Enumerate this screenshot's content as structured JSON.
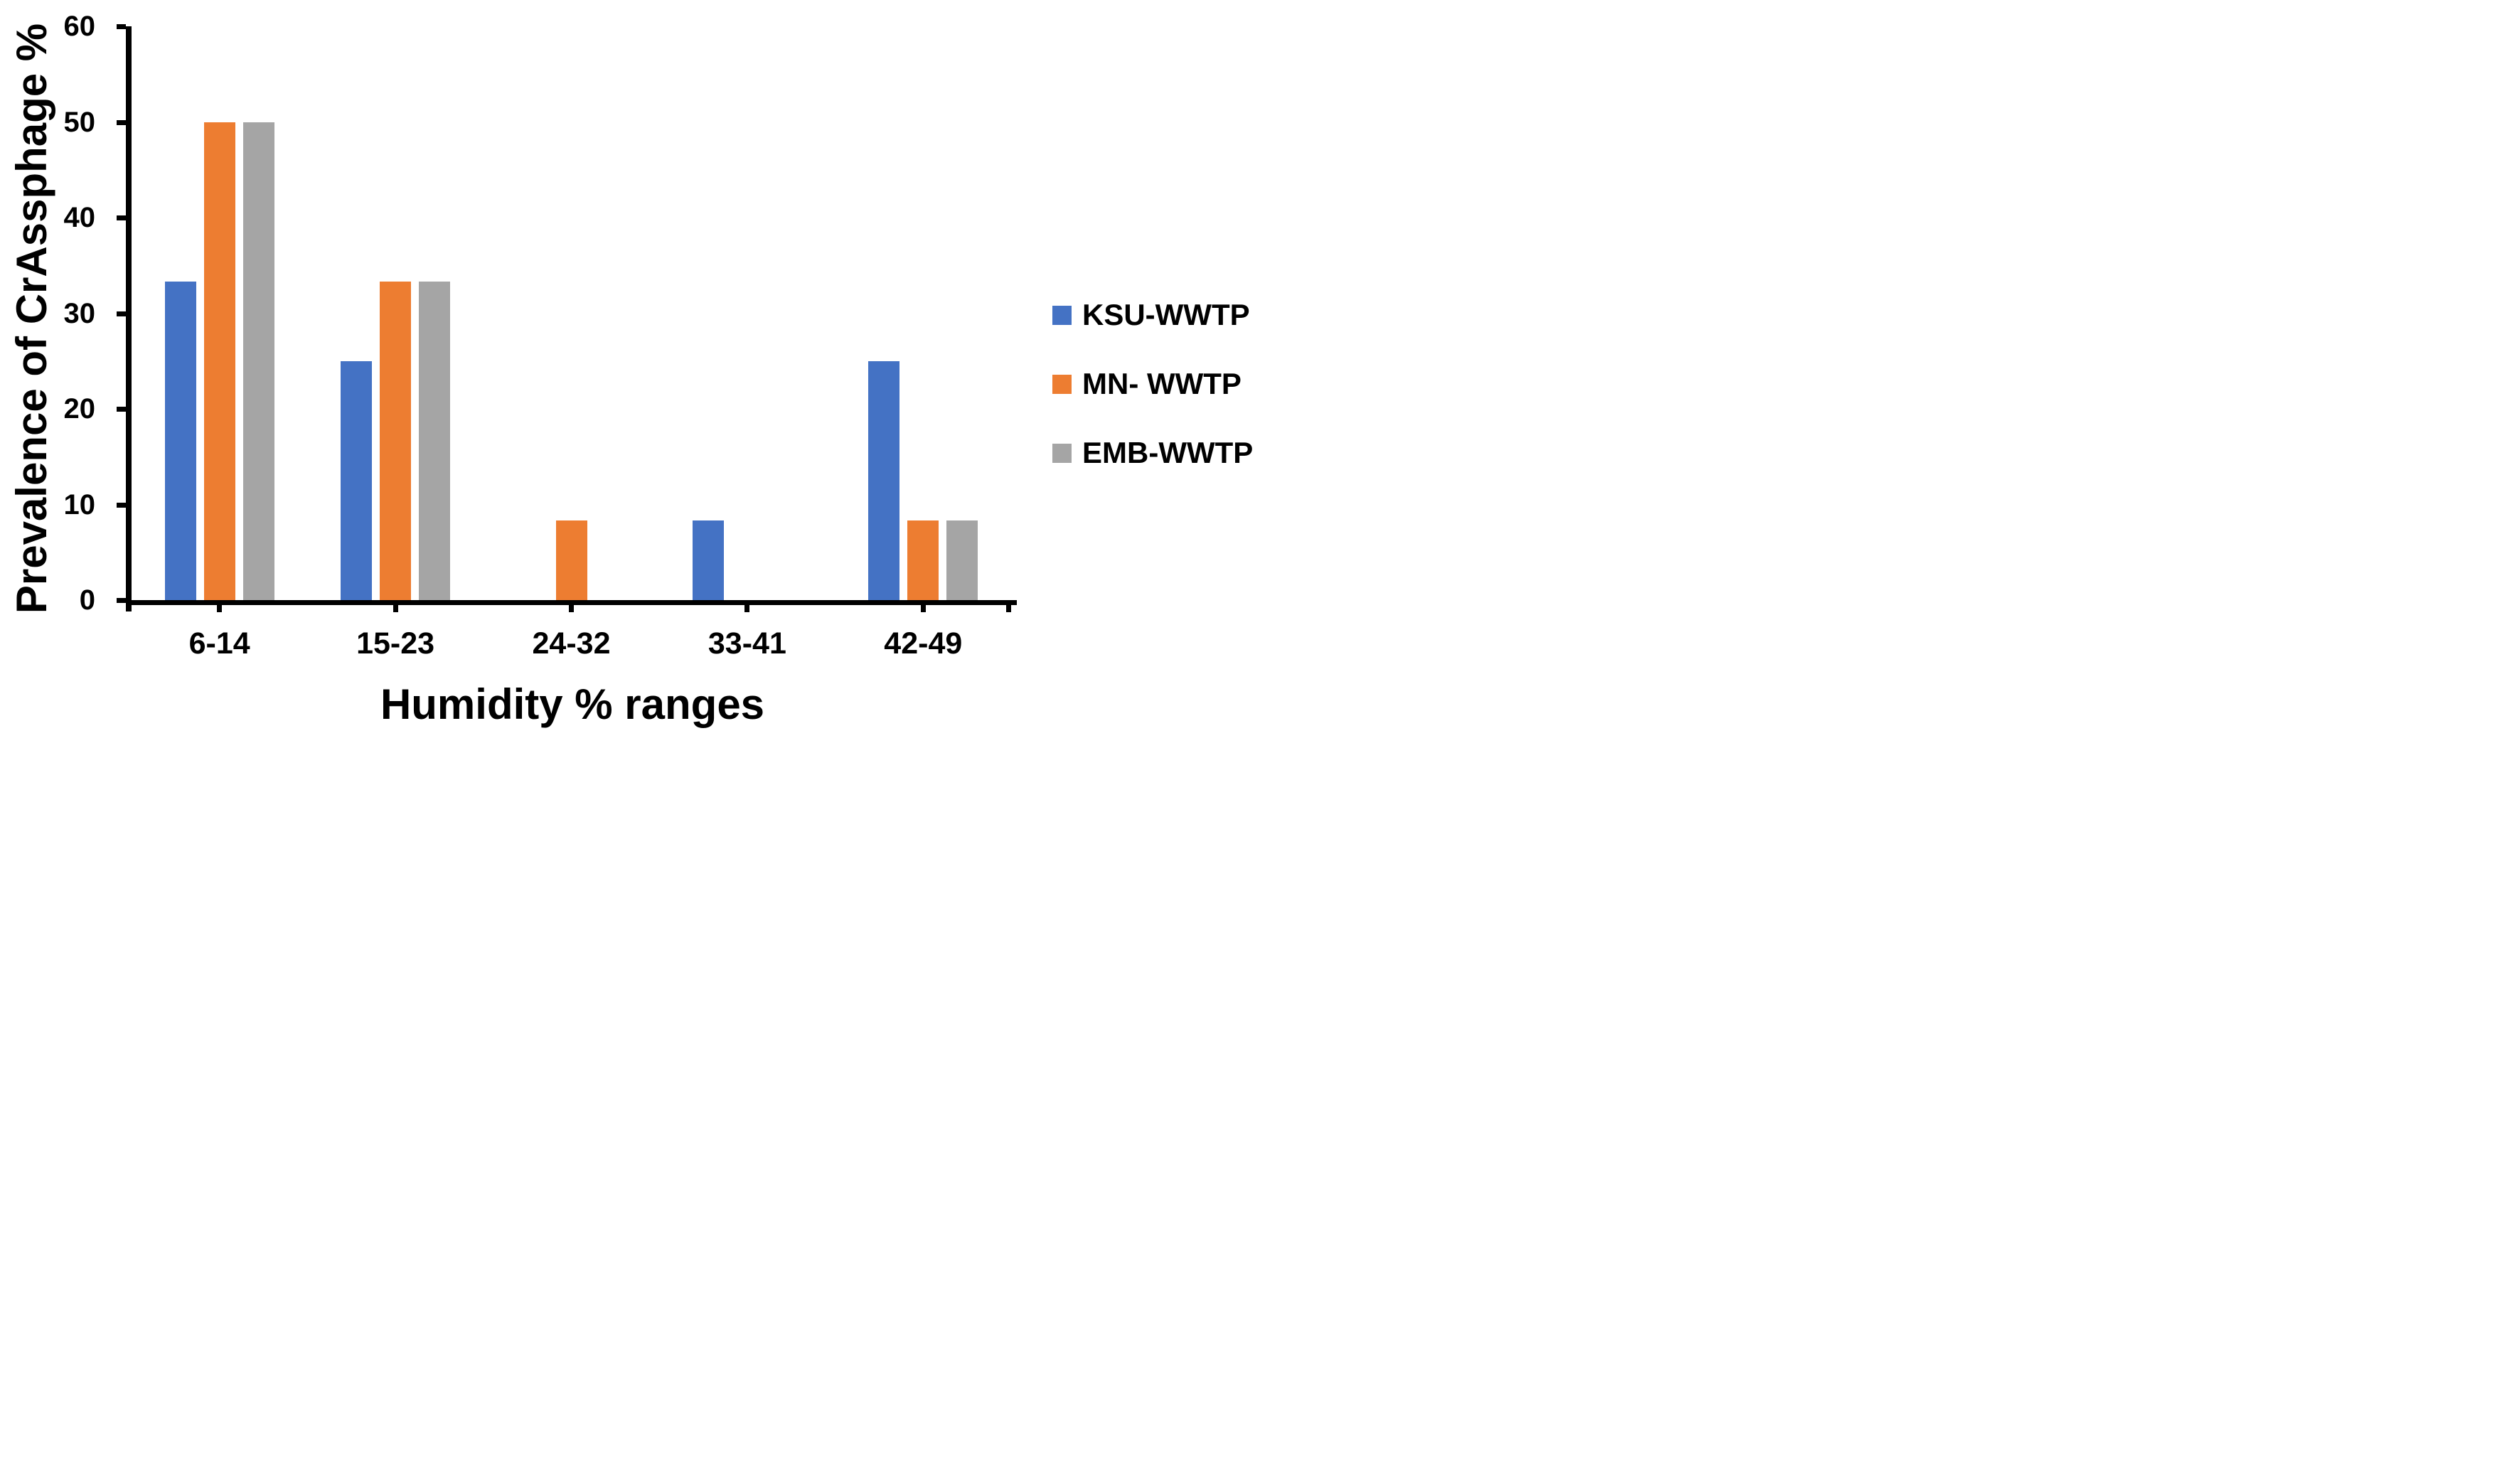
{
  "figure": {
    "background_color": "#FFFFFF",
    "text_color": "#000000",
    "axis_color": "#000000"
  },
  "chart_data": {
    "type": "bar",
    "title": "",
    "xlabel": "Humidity % ranges",
    "ylabel": "Prevalence of CrAssphage %",
    "categories": [
      "6-14",
      "15-23",
      "24-32",
      "33-41",
      "42-49"
    ],
    "series": [
      {
        "name": "KSU-WWTP",
        "color": "#4472C4",
        "values": [
          33.3,
          25,
          0,
          8.3,
          25
        ]
      },
      {
        "name": "MN- WWTP",
        "color": "#ED7D31",
        "values": [
          50,
          33.3,
          8.3,
          0,
          8.3
        ]
      },
      {
        "name": "EMB-WWTP",
        "color": "#A5A5A5",
        "values": [
          50,
          33.3,
          0,
          0,
          8.3
        ]
      }
    ],
    "ylim": [
      0,
      60
    ],
    "yticks": [
      0,
      10,
      20,
      30,
      40,
      50,
      60
    ],
    "ytick_step": 10,
    "grid": false,
    "legend_position": "right"
  }
}
